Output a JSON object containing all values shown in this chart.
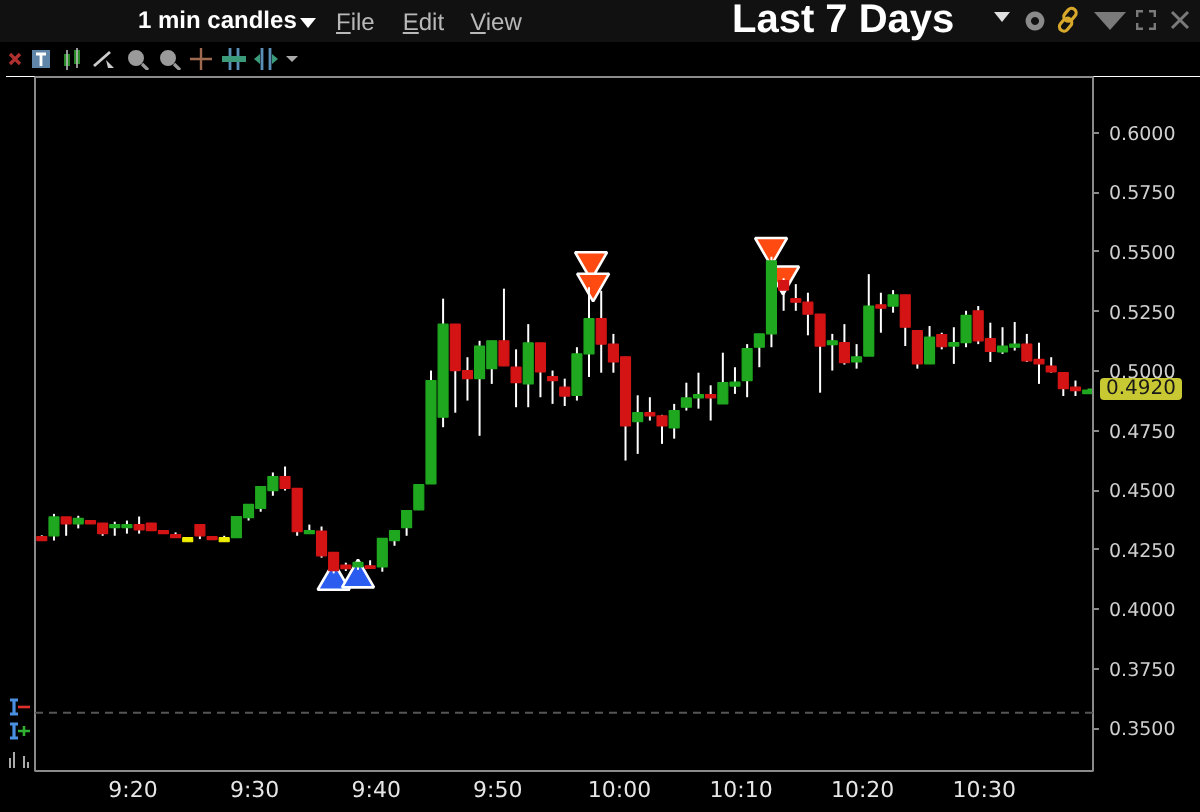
{
  "chart_data": {
    "type": "candlestick",
    "title": "Last 7 Days",
    "subtitle": "1 min candles",
    "annotations": [
      "File",
      "Edit",
      "View",
      {
        "text": "0.4920",
        "x": 10.6417,
        "y": 0.492
      }
    ],
    "x": [
      9.2083,
      9.225,
      9.2417,
      9.2583,
      9.275,
      9.2917,
      9.3083,
      9.325,
      9.3417,
      9.3583,
      9.375,
      9.3917,
      9.4083,
      9.425,
      9.4417,
      9.4583,
      9.475,
      9.4917,
      9.5083,
      9.525,
      9.5417,
      9.5583,
      9.575,
      9.5917,
      9.6083,
      9.625,
      9.6417,
      9.6583,
      9.675,
      9.6917,
      9.7083,
      9.725,
      9.7417,
      9.7583,
      9.775,
      9.7917,
      9.8083,
      9.825,
      9.8417,
      9.8583,
      9.875,
      9.8917,
      9.9083,
      9.925,
      9.9417,
      9.9583,
      9.975,
      9.9917,
      10.0083,
      10.025,
      10.0417,
      10.0583,
      10.075,
      10.0917,
      10.1083,
      10.125,
      10.1417,
      10.1583,
      10.175,
      10.1917,
      10.2083,
      10.225,
      10.2417,
      10.2583,
      10.275,
      10.2917,
      10.3083,
      10.325,
      10.3417,
      10.3583,
      10.375,
      10.3917,
      10.4083,
      10.425,
      10.4417,
      10.4583,
      10.475,
      10.4917,
      10.5083,
      10.525,
      10.5417,
      10.5583,
      10.575,
      10.5917,
      10.6083,
      10.625,
      10.6417
    ],
    "ohlc": [
      [
        0.4305,
        0.431,
        0.4288,
        0.4288
      ],
      [
        0.4308,
        0.44,
        0.4288,
        0.4387
      ],
      [
        0.4387,
        0.4387,
        0.4308,
        0.4358
      ],
      [
        0.4358,
        0.4392,
        0.4339,
        0.4381
      ],
      [
        0.4372,
        0.4372,
        0.4358,
        0.4358
      ],
      [
        0.4361,
        0.4361,
        0.4308,
        0.4317
      ],
      [
        0.4342,
        0.4367,
        0.4308,
        0.4355
      ],
      [
        0.4342,
        0.4372,
        0.4317,
        0.4355
      ],
      [
        0.4355,
        0.4389,
        0.4317,
        0.4333
      ],
      [
        0.4361,
        0.4361,
        0.433,
        0.433
      ],
      [
        0.433,
        0.433,
        0.4317,
        0.4317
      ],
      [
        0.4313,
        0.4322,
        0.43,
        0.43
      ],
      [
        0.43,
        0.43,
        0.4283,
        0.4283
      ],
      [
        0.4355,
        0.4355,
        0.4294,
        0.4308
      ],
      [
        0.4305,
        0.4305,
        0.4292,
        0.4292
      ],
      [
        0.43,
        0.4308,
        0.4283,
        0.4283
      ],
      [
        0.43,
        0.4389,
        0.43,
        0.4389
      ],
      [
        0.4384,
        0.444,
        0.4372,
        0.444
      ],
      [
        0.4423,
        0.4515,
        0.4409,
        0.4515
      ],
      [
        0.4498,
        0.4574,
        0.4476,
        0.4557
      ],
      [
        0.4557,
        0.4599,
        0.4498,
        0.4507
      ],
      [
        0.4507,
        0.4507,
        0.4308,
        0.4325
      ],
      [
        0.4317,
        0.4355,
        0.4317,
        0.433
      ],
      [
        0.4328,
        0.4347,
        0.4216,
        0.4224
      ],
      [
        0.4238,
        0.4238,
        0.415,
        0.4162
      ],
      [
        0.4185,
        0.4195,
        0.416,
        0.417
      ],
      [
        0.4177,
        0.42,
        0.4165,
        0.4196
      ],
      [
        0.4182,
        0.4205,
        0.4171,
        0.4171
      ],
      [
        0.4177,
        0.4297,
        0.4157,
        0.4297
      ],
      [
        0.4288,
        0.433,
        0.4266,
        0.433
      ],
      [
        0.4342,
        0.4414,
        0.4308,
        0.4414
      ],
      [
        0.4417,
        0.4523,
        0.4417,
        0.4523
      ],
      [
        0.4526,
        0.5002,
        0.4526,
        0.496
      ],
      [
        0.4806,
        0.5304,
        0.4764,
        0.5197
      ],
      [
        0.5197,
        0.5197,
        0.4825,
        0.5002
      ],
      [
        0.5002,
        0.5058,
        0.4876,
        0.4968
      ],
      [
        0.4968,
        0.5127,
        0.4728,
        0.5105
      ],
      [
        0.501,
        0.5127,
        0.4946,
        0.5127
      ],
      [
        0.5127,
        0.5346,
        0.5022,
        0.5022
      ],
      [
        0.5016,
        0.5091,
        0.4848,
        0.4951
      ],
      [
        0.4946,
        0.5197,
        0.4848,
        0.5118
      ],
      [
        0.5118,
        0.5118,
        0.489,
        0.4996
      ],
      [
        0.4977,
        0.5002,
        0.4862,
        0.496
      ],
      [
        0.4932,
        0.4968,
        0.4853,
        0.4895
      ],
      [
        0.4898,
        0.51,
        0.4876,
        0.5072
      ],
      [
        0.5072,
        0.5352,
        0.4975,
        0.522
      ],
      [
        0.522,
        0.5337,
        0.4993,
        0.5113
      ],
      [
        0.5113,
        0.5156,
        0.4993,
        0.5038
      ],
      [
        0.506,
        0.506,
        0.4624,
        0.4769
      ],
      [
        0.4787,
        0.4898,
        0.4652,
        0.4825
      ],
      [
        0.4825,
        0.489,
        0.4792,
        0.4812
      ],
      [
        0.4812,
        0.4816,
        0.4694,
        0.4769
      ],
      [
        0.4761,
        0.4862,
        0.4716,
        0.4834
      ],
      [
        0.4848,
        0.4951,
        0.4834,
        0.4887
      ],
      [
        0.4887,
        0.4993,
        0.4842,
        0.4901
      ],
      [
        0.4901,
        0.494,
        0.4792,
        0.4887
      ],
      [
        0.4862,
        0.5077,
        0.4862,
        0.4951
      ],
      [
        0.4937,
        0.5016,
        0.4904,
        0.4953
      ],
      [
        0.496,
        0.5113,
        0.489,
        0.5094
      ],
      [
        0.51,
        0.5156,
        0.5016,
        0.5156
      ],
      [
        0.5156,
        0.548,
        0.51,
        0.5463
      ],
      [
        0.538,
        0.539,
        0.5253,
        0.534
      ],
      [
        0.5304,
        0.5365,
        0.5253,
        0.5289
      ],
      [
        0.5289,
        0.5329,
        0.515,
        0.5239
      ],
      [
        0.5239,
        0.5239,
        0.4909,
        0.5105
      ],
      [
        0.5111,
        0.5156,
        0.5002,
        0.5127
      ],
      [
        0.5119,
        0.5197,
        0.5027,
        0.5035
      ],
      [
        0.5038,
        0.5113,
        0.501,
        0.506
      ],
      [
        0.5063,
        0.5407,
        0.5063,
        0.5273
      ],
      [
        0.5278,
        0.5329,
        0.5161,
        0.5264
      ],
      [
        0.5273,
        0.534,
        0.5245,
        0.532
      ],
      [
        0.532,
        0.532,
        0.5105,
        0.5184
      ],
      [
        0.517,
        0.517,
        0.501,
        0.503
      ],
      [
        0.503,
        0.5189,
        0.503,
        0.5142
      ],
      [
        0.5153,
        0.5161,
        0.5091,
        0.5102
      ],
      [
        0.5105,
        0.5184,
        0.503,
        0.5119
      ],
      [
        0.5119,
        0.5253,
        0.51,
        0.5234
      ],
      [
        0.5253,
        0.5273,
        0.5113,
        0.5127
      ],
      [
        0.5136,
        0.5203,
        0.5038,
        0.5082
      ],
      [
        0.508,
        0.5184,
        0.5072,
        0.5105
      ],
      [
        0.51,
        0.5206,
        0.5086,
        0.5113
      ],
      [
        0.5113,
        0.5156,
        0.5038,
        0.5043
      ],
      [
        0.5049,
        0.5119,
        0.4946,
        0.503
      ],
      [
        0.5021,
        0.5058,
        0.4993,
        0.4996
      ],
      [
        0.4993,
        0.4993,
        0.4895,
        0.4926
      ],
      [
        0.4932,
        0.496,
        0.4895,
        0.4918
      ],
      [
        0.4905,
        0.492,
        0.4905,
        0.492
      ]
    ],
    "colors": [
      "#d41414",
      "#1fa81f",
      "#d41414",
      "#1fa81f",
      "#d41414",
      "#d41414",
      "#1fa81f",
      "#1fa81f",
      "#d41414",
      "#d41414",
      "#d41414",
      "#d41414",
      "#f0f000",
      "#d41414",
      "#d41414",
      "#f0f000",
      "#1fa81f",
      "#1fa81f",
      "#1fa81f",
      "#1fa81f",
      "#d41414",
      "#d41414",
      "#1fa81f",
      "#d41414",
      "#d41414",
      "#d41414",
      "#1fa81f",
      "#d41414",
      "#1fa81f",
      "#1fa81f",
      "#1fa81f",
      "#1fa81f",
      "#1fa81f",
      "#1fa81f",
      "#d41414",
      "#d41414",
      "#1fa81f",
      "#1fa81f",
      "#d41414",
      "#d41414",
      "#1fa81f",
      "#d41414",
      "#d41414",
      "#d41414",
      "#1fa81f",
      "#1fa81f",
      "#d41414",
      "#d41414",
      "#d41414",
      "#1fa81f",
      "#d41414",
      "#d41414",
      "#1fa81f",
      "#1fa81f",
      "#1fa81f",
      "#d41414",
      "#1fa81f",
      "#1fa81f",
      "#1fa81f",
      "#1fa81f",
      "#1fa81f",
      "#d41414",
      "#d41414",
      "#d41414",
      "#d41414",
      "#1fa81f",
      "#d41414",
      "#1fa81f",
      "#1fa81f",
      "#d41414",
      "#1fa81f",
      "#d41414",
      "#d41414",
      "#1fa81f",
      "#d41414",
      "#1fa81f",
      "#1fa81f",
      "#d41414",
      "#d41414",
      "#1fa81f",
      "#1fa81f",
      "#d41414",
      "#d41414",
      "#d41414",
      "#d41414",
      "#d41414",
      "#1fa81f"
    ],
    "series": [
      {
        "type": "scatter",
        "marker": "triangle",
        "color": "#2a5cf0",
        "x": [
          9.6083,
          9.6417
        ],
        "values": [
          0.412,
          0.413
        ]
      },
      {
        "type": "scatter",
        "marker": "triangle",
        "color": "#ff4a12",
        "x": [
          9.9611,
          9.9639,
          10.2078,
          10.2242
        ],
        "values": [
          0.546,
          0.537,
          0.552,
          0.54
        ]
      }
    ],
    "ref_lines": [
      {
        "axis": "y",
        "value": 0.3565,
        "color": "#555555",
        "line_style": "dashed"
      }
    ],
    "xlim": [
      9.199,
      10.649
    ],
    "ylim": [
      0.332,
      0.6235
    ],
    "xticks": [
      {
        "value": 9.3333,
        "label": "9:20"
      },
      {
        "value": 9.5,
        "label": "9:30"
      },
      {
        "value": 9.6667,
        "label": "9:40"
      },
      {
        "value": 9.8333,
        "label": "9:50"
      },
      {
        "value": 10,
        "label": "10:00"
      },
      {
        "value": 10.1667,
        "label": "10:10"
      },
      {
        "value": 10.3333,
        "label": "10:20"
      },
      {
        "value": 10.5,
        "label": "10:30"
      }
    ],
    "yticks": [
      {
        "value": 0.35,
        "label": "0.3500"
      },
      {
        "value": 0.375,
        "label": "0.3750"
      },
      {
        "value": 0.4,
        "label": "0.4000"
      },
      {
        "value": 0.425,
        "label": "0.4250"
      },
      {
        "value": 0.45,
        "label": "0.4500"
      },
      {
        "value": 0.475,
        "label": "0.4750"
      },
      {
        "value": 0.5,
        "label": "0.5000"
      },
      {
        "value": 0.525,
        "label": "0.5250"
      },
      {
        "value": 0.55,
        "label": "0.5500"
      },
      {
        "value": 0.575,
        "label": "0.5750"
      },
      {
        "value": 0.6,
        "label": "0.6000"
      }
    ]
  }
}
